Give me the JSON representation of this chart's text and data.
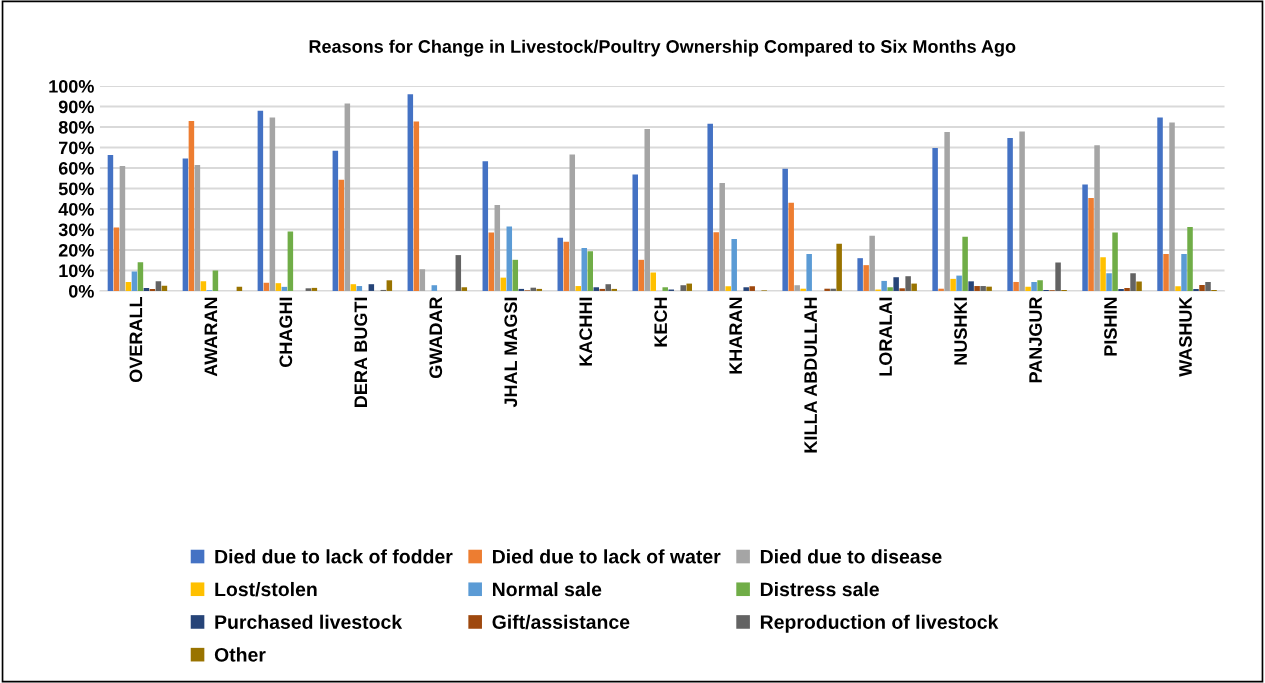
{
  "chart_data": {
    "type": "bar",
    "title": "Reasons for Change in Livestock/Poultry Ownership Compared to Six Months Ago",
    "categories": [
      "OVERALL",
      "AWARAN",
      "CHAGHI",
      "DERA BUGTI",
      "GWADAR",
      "JHAL MAGSI",
      "KACHHI",
      "KECH",
      "KHARAN",
      "KILLA ABDULLAH",
      "LORALAI",
      "NUSHKI",
      "PANJGUR",
      "PISHIN",
      "WASHUK"
    ],
    "series": [
      {
        "name": "Died due to lack of fodder",
        "color": "#4472c4",
        "values": [
          66.4,
          64.6,
          88,
          68.4,
          96,
          63.3,
          26,
          56.8,
          81.6,
          59.7,
          16,
          69.8,
          74.7,
          51.9,
          84.7
        ]
      },
      {
        "name": "Died due to lack of water",
        "color": "#ed7d31",
        "values": [
          31,
          83,
          4,
          54.3,
          82.7,
          28.5,
          24,
          15.2,
          28.7,
          43,
          12.6,
          1.1,
          4.4,
          45.4,
          18
        ]
      },
      {
        "name": "Died due to disease",
        "color": "#a5a5a5",
        "values": [
          61,
          61.5,
          84.7,
          91.5,
          10.6,
          42,
          66.6,
          79,
          52.7,
          2.8,
          27,
          77.6,
          77.8,
          71.1,
          82.2
        ]
      },
      {
        "name": "Lost/stolen",
        "color": "#ffc000",
        "values": [
          4.4,
          4.7,
          3.8,
          3.3,
          0,
          6.5,
          2.4,
          9,
          2.3,
          1.1,
          0.7,
          5.9,
          2,
          16.5,
          2.3
        ]
      },
      {
        "name": "Normal sale",
        "color": "#5b9bd5",
        "values": [
          9.5,
          0.3,
          2,
          2.4,
          2.8,
          31.5,
          21,
          0,
          25.3,
          18,
          4.9,
          7.5,
          4.4,
          8.6,
          18
        ]
      },
      {
        "name": "Distress sale",
        "color": "#70ad47",
        "values": [
          14,
          10,
          29,
          0,
          0,
          15.2,
          19.4,
          1.8,
          0,
          0,
          1.8,
          26.4,
          5.2,
          28.5,
          31.2
        ]
      },
      {
        "name": "Purchased livestock",
        "color": "#264478",
        "values": [
          1.5,
          0,
          0,
          3.3,
          0,
          1,
          1.8,
          0.7,
          1.8,
          0,
          6.7,
          4.7,
          0.5,
          1,
          1
        ]
      },
      {
        "name": "Gift/assistance",
        "color": "#9e480e",
        "values": [
          1,
          0,
          0,
          0,
          0,
          0.3,
          1,
          0,
          2.3,
          1.1,
          1.3,
          2.4,
          0.3,
          1.5,
          2.9
        ]
      },
      {
        "name": "Reproduction of livestock",
        "color": "#636363",
        "values": [
          4.7,
          0,
          1.3,
          0.5,
          17.5,
          1.6,
          3.3,
          2.8,
          0,
          1.1,
          7.2,
          2.4,
          13.9,
          8.6,
          4.4
        ]
      },
      {
        "name": "Other",
        "color": "#997300",
        "values": [
          2.5,
          2,
          1.5,
          5.2,
          1.8,
          1,
          1,
          3.6,
          0.3,
          23,
          3.6,
          2.1,
          0.5,
          4.6,
          0.5
        ]
      }
    ],
    "ylim": [
      0,
      100
    ],
    "yticks": [
      {
        "value": 0,
        "label": "0%"
      },
      {
        "value": 10,
        "label": "10%"
      },
      {
        "value": 20,
        "label": "20%"
      },
      {
        "value": 30,
        "label": "30%"
      },
      {
        "value": 40,
        "label": "40%"
      },
      {
        "value": 50,
        "label": "50%"
      },
      {
        "value": 60,
        "label": "60%"
      },
      {
        "value": 70,
        "label": "70%"
      },
      {
        "value": 80,
        "label": "80%"
      },
      {
        "value": 90,
        "label": "90%"
      },
      {
        "value": 100,
        "label": "100%"
      }
    ],
    "grid": "y",
    "legend": "bottom"
  }
}
